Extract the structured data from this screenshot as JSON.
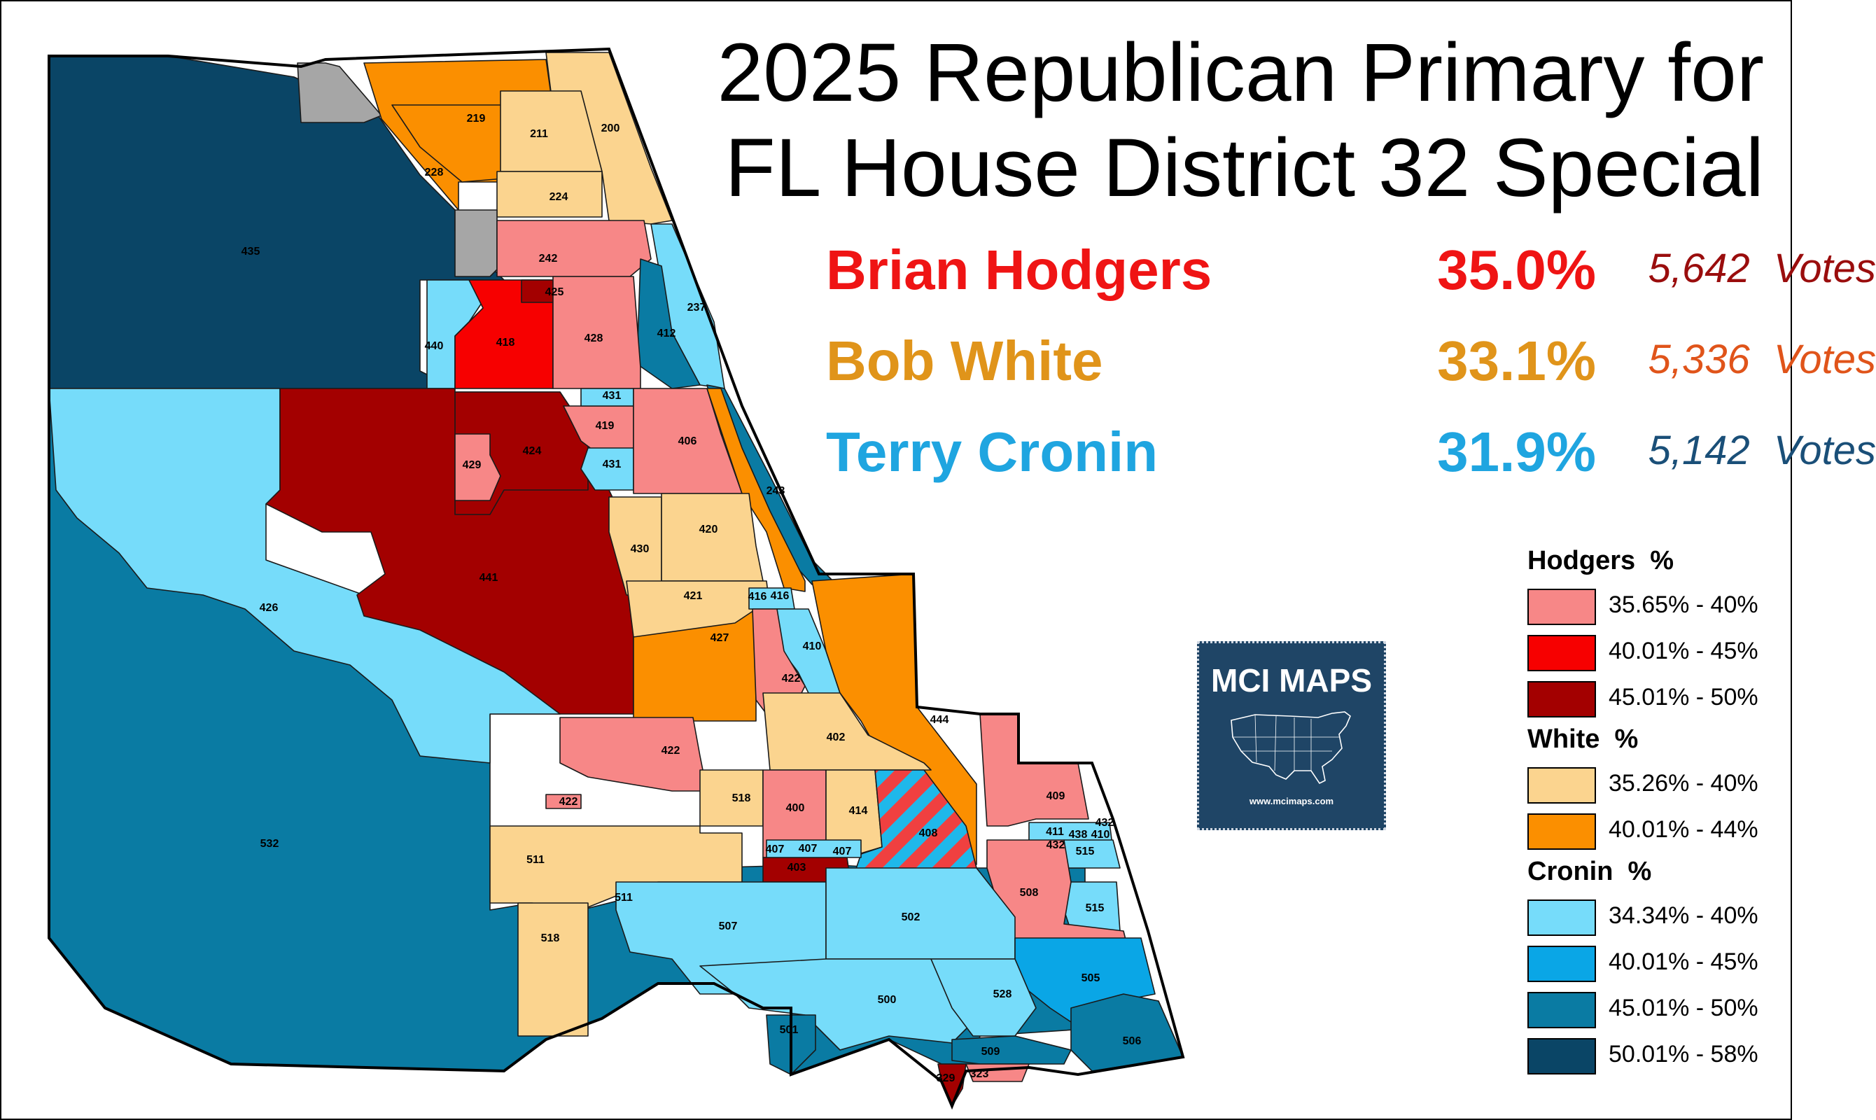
{
  "title": {
    "line1": "2025 Republican Primary for",
    "line2": "FL House District 32 Special"
  },
  "candidates": [
    {
      "name": "Brian Hodgers",
      "pct": "35.0%",
      "votes": "5,642 Votes",
      "name_color": "#ef1414",
      "votes_color": "#9a0d0d"
    },
    {
      "name": "Bob White",
      "pct": "33.1%",
      "votes": "5,336 Votes",
      "name_color": "#e0941a",
      "votes_color": "#e0541a"
    },
    {
      "name": "Terry Cronin",
      "pct": "31.9%",
      "votes": "5,142 Votes",
      "name_color": "#1fa5e0",
      "votes_color": "#1a4f78"
    }
  ],
  "legend": {
    "groups": [
      {
        "heading": "Hodgers  %",
        "items": [
          {
            "label": "35.65% - 40%",
            "color": "#f78787"
          },
          {
            "label": "40.01% - 45%",
            "color": "#f70000"
          },
          {
            "label": "45.01% - 50%",
            "color": "#a30000"
          }
        ]
      },
      {
        "heading": "White  %",
        "items": [
          {
            "label": "35.26% - 40%",
            "color": "#fbd48f"
          },
          {
            "label": "40.01% - 44%",
            "color": "#fb8f00"
          }
        ]
      },
      {
        "heading": "Cronin  %",
        "items": [
          {
            "label": "34.34% - 40%",
            "color": "#76dcfa"
          },
          {
            "label": "40.01% - 45%",
            "color": "#0aa6e6"
          },
          {
            "label": "45.01% - 50%",
            "color": "#0a7ba3"
          },
          {
            "label": "50.01% - 58%",
            "color": "#0a4566"
          }
        ]
      }
    ]
  },
  "tie_color": "#a6a6a6",
  "badge": {
    "title": "MCI MAPS",
    "url": "www.mcimaps.com"
  },
  "precinct_labels": [
    "435",
    "219",
    "211",
    "200",
    "228",
    "224",
    "242",
    "425",
    "237",
    "440",
    "418",
    "428",
    "412",
    "431",
    "419",
    "406",
    "429",
    "424",
    "431",
    "243",
    "430",
    "420",
    "441",
    "421",
    "426",
    "416",
    "416",
    "427",
    "410",
    "422",
    "444",
    "402",
    "422",
    "518",
    "409",
    "422",
    "400",
    "414",
    "408",
    "411",
    "432",
    "438",
    "410",
    "432",
    "515",
    "511",
    "407",
    "407",
    "407",
    "403",
    "508",
    "511",
    "502",
    "515",
    "518",
    "507",
    "505",
    "532",
    "500",
    "528",
    "501",
    "506",
    "509",
    "323",
    "329"
  ],
  "precincts": [
    {
      "id": "435",
      "c": "#0a4566"
    },
    {
      "id": "219",
      "c": "#fb8f00"
    },
    {
      "id": "211",
      "c": "#fbd48f"
    },
    {
      "id": "200",
      "c": "#fbd48f"
    },
    {
      "id": "224",
      "c": "#fbd48f"
    },
    {
      "id": "242",
      "c": "#f78787"
    },
    {
      "id": "425",
      "c": "#a30000"
    },
    {
      "id": "237",
      "c": "#76dcfa"
    },
    {
      "id": "440",
      "c": "#76dcfa"
    },
    {
      "id": "418",
      "c": "#f70000"
    },
    {
      "id": "428",
      "c": "#f78787"
    },
    {
      "id": "412",
      "c": "#0a7ba3"
    },
    {
      "id": "426",
      "c": "#76dcfa"
    },
    {
      "id": "441",
      "c": "#a30000"
    },
    {
      "id": "424",
      "c": "#a30000"
    },
    {
      "id": "429",
      "c": "#f78787"
    },
    {
      "id": "431",
      "c": "#76dcfa"
    },
    {
      "id": "419",
      "c": "#f78787"
    },
    {
      "id": "406",
      "c": "#f78787"
    },
    {
      "id": "243",
      "c": "#0a7ba3"
    },
    {
      "id": "430",
      "c": "#fbd48f"
    },
    {
      "id": "420",
      "c": "#fbd48f"
    },
    {
      "id": "421",
      "c": "#fbd48f"
    },
    {
      "id": "427",
      "c": "#fb8f00"
    },
    {
      "id": "410",
      "c": "#76dcfa"
    },
    {
      "id": "444",
      "c": "#fb8f00"
    },
    {
      "id": "402",
      "c": "#fbd48f"
    },
    {
      "id": "532",
      "c": "#0a7ba3"
    },
    {
      "id": "507",
      "c": "#76dcfa"
    },
    {
      "id": "502",
      "c": "#76dcfa"
    },
    {
      "id": "500",
      "c": "#76dcfa"
    },
    {
      "id": "505",
      "c": "#0aa6e6"
    },
    {
      "id": "506",
      "c": "#0a7ba3"
    },
    {
      "id": "508",
      "c": "#f78787"
    },
    {
      "id": "409",
      "c": "#f78787"
    },
    {
      "id": "403",
      "c": "#a30000"
    }
  ]
}
